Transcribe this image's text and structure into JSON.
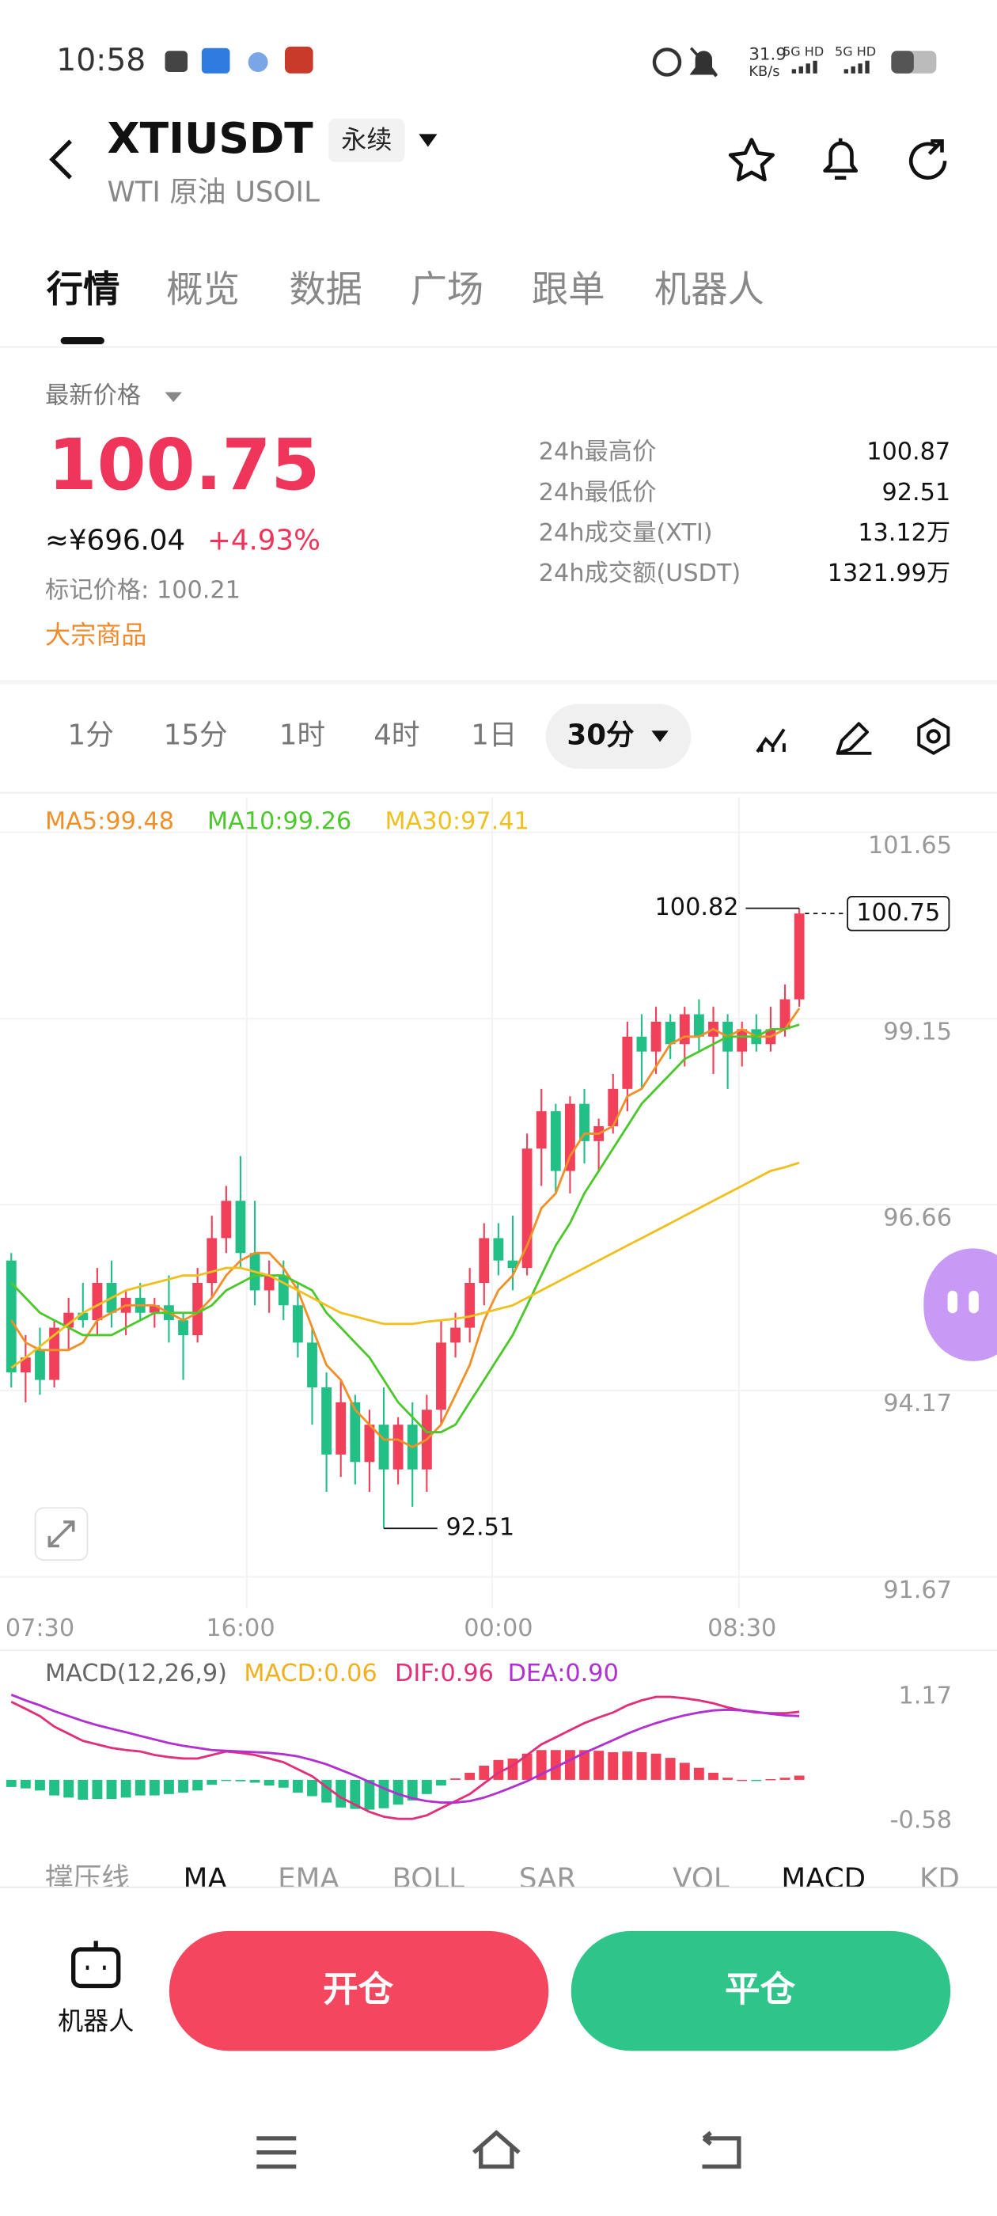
{
  "status_bar": {
    "time": "10:58",
    "net_speed": "31.9",
    "net_unit": "KB/s",
    "sim1": "5G HD",
    "sim2": "5G HD"
  },
  "header": {
    "symbol": "XTIUSDT",
    "contract": "永续",
    "subtitle": "WTI 原油 USOIL"
  },
  "tabs": [
    "行情",
    "概览",
    "数据",
    "广场",
    "跟单",
    "机器人"
  ],
  "price": {
    "label": "最新价格",
    "last": "100.75",
    "cny": "≈¥696.04",
    "change": "+4.93%",
    "mark": "标记价格: 100.21",
    "category": "大宗商品"
  },
  "stats": [
    {
      "label": "24h最高价",
      "value": "100.87"
    },
    {
      "label": "24h最低价",
      "value": "92.51"
    },
    {
      "label": "24h成交量(XTI)",
      "value": "13.12万"
    },
    {
      "label": "24h成交额(USDT)",
      "value": "1321.99万"
    }
  ],
  "timeframes": [
    "1分",
    "15分",
    "1时",
    "4时",
    "1日"
  ],
  "active_timeframe": "30分",
  "chart_data": [
    {
      "type": "candlestick",
      "up_color": "#f0405a",
      "down_color": "#22bf86",
      "grid": true,
      "categories": [
        null,
        null,
        "07:30",
        null,
        null,
        null,
        null,
        null,
        null,
        null,
        null,
        null,
        null,
        null,
        null,
        null,
        "16:00",
        null,
        null,
        null,
        null,
        null,
        null,
        null,
        null,
        null,
        null,
        null,
        null,
        null,
        null,
        null,
        null,
        null,
        "00:00",
        null,
        null,
        null,
        null,
        null,
        null,
        null,
        null,
        null,
        null,
        null,
        null,
        null,
        null,
        null,
        null,
        "08:30",
        null,
        null,
        null,
        null
      ],
      "open": [
        96.1,
        94.6,
        94.9,
        94.5,
        95.2,
        95.4,
        95.3,
        95.8,
        95.4,
        95.6,
        95.4,
        95.5,
        95.3,
        95.1,
        95.8,
        96.4,
        96.9,
        96.2,
        95.7,
        95.9,
        95.5,
        95.0,
        94.4,
        93.5,
        94.2,
        93.4,
        93.9,
        93.3,
        93.9,
        93.3,
        94.1,
        95.0,
        95.2,
        95.8,
        96.4,
        96.1,
        96.0,
        97.6,
        98.1,
        97.3,
        98.2,
        97.7,
        97.9,
        98.4,
        99.1,
        98.9,
        99.3,
        99.0,
        99.4,
        99.1,
        99.3,
        98.9,
        99.2,
        99.0,
        99.2,
        99.6
      ],
      "high": [
        96.2,
        95.1,
        95.2,
        95.3,
        95.6,
        95.8,
        96.0,
        96.1,
        95.7,
        95.8,
        95.6,
        95.9,
        95.4,
        96.0,
        96.7,
        97.1,
        97.5,
        96.9,
        96.1,
        96.1,
        95.8,
        95.2,
        94.6,
        94.5,
        94.3,
        94.1,
        94.4,
        94.0,
        94.2,
        94.3,
        95.3,
        95.4,
        96.0,
        96.6,
        96.6,
        96.7,
        97.8,
        98.4,
        98.2,
        98.3,
        98.4,
        98.0,
        98.6,
        99.3,
        99.4,
        99.5,
        99.4,
        99.5,
        99.6,
        99.5,
        99.4,
        99.3,
        99.4,
        99.5,
        99.8,
        100.82
      ],
      "low": [
        94.4,
        94.2,
        94.3,
        94.4,
        94.9,
        95.2,
        95.1,
        95.2,
        95.1,
        95.3,
        95.2,
        95.0,
        94.5,
        95.0,
        95.6,
        96.2,
        96.0,
        95.5,
        95.4,
        95.3,
        94.8,
        93.9,
        93.0,
        93.2,
        93.1,
        93.0,
        92.51,
        93.1,
        92.8,
        93.0,
        93.9,
        94.8,
        95.0,
        95.5,
        95.9,
        95.7,
        95.9,
        97.1,
        97.0,
        97.0,
        97.4,
        97.3,
        97.8,
        98.1,
        98.4,
        98.6,
        98.8,
        98.7,
        98.9,
        98.6,
        98.4,
        98.7,
        98.9,
        98.9,
        99.1,
        99.5
      ],
      "close": [
        94.6,
        94.8,
        94.5,
        95.2,
        95.4,
        95.3,
        95.8,
        95.4,
        95.6,
        95.4,
        95.5,
        95.3,
        95.1,
        95.8,
        96.4,
        96.9,
        96.2,
        95.7,
        95.9,
        95.5,
        95.0,
        94.4,
        93.5,
        94.2,
        93.4,
        93.9,
        93.3,
        93.9,
        93.3,
        94.1,
        95.0,
        95.2,
        95.8,
        96.4,
        96.1,
        96.0,
        97.6,
        98.1,
        97.3,
        98.2,
        97.7,
        97.9,
        98.4,
        99.1,
        98.9,
        99.3,
        99.0,
        99.4,
        99.1,
        99.3,
        98.9,
        99.2,
        99.0,
        99.2,
        99.6,
        100.75
      ],
      "series": [
        {
          "name": "MA5:99.48",
          "color": "#f0902a",
          "values": [
            95.3,
            95.0,
            94.9,
            94.9,
            94.9,
            95.0,
            95.3,
            95.4,
            95.5,
            95.5,
            95.5,
            95.4,
            95.3,
            95.4,
            95.6,
            95.9,
            96.1,
            96.2,
            96.2,
            96.0,
            95.7,
            95.2,
            94.7,
            94.5,
            94.1,
            93.9,
            93.7,
            93.7,
            93.6,
            93.7,
            93.9,
            94.3,
            94.7,
            95.3,
            95.7,
            95.9,
            96.3,
            96.8,
            97.0,
            97.5,
            97.8,
            97.8,
            97.9,
            98.3,
            98.4,
            98.7,
            99.0,
            99.1,
            99.1,
            99.2,
            99.1,
            99.2,
            99.1,
            99.1,
            99.2,
            99.48
          ]
        },
        {
          "name": "MA10:99.26",
          "color": "#4cc82c",
          "values": [
            95.8,
            95.6,
            95.4,
            95.3,
            95.2,
            95.1,
            95.1,
            95.1,
            95.2,
            95.3,
            95.4,
            95.4,
            95.4,
            95.4,
            95.5,
            95.7,
            95.8,
            95.9,
            95.9,
            95.9,
            95.8,
            95.7,
            95.4,
            95.2,
            95.0,
            94.8,
            94.5,
            94.2,
            94.0,
            93.8,
            93.8,
            93.9,
            94.2,
            94.5,
            94.8,
            95.1,
            95.5,
            95.9,
            96.3,
            96.6,
            97.0,
            97.3,
            97.6,
            97.9,
            98.2,
            98.4,
            98.6,
            98.8,
            98.9,
            99.0,
            99.1,
            99.1,
            99.1,
            99.2,
            99.2,
            99.26
          ]
        },
        {
          "name": "MA30:97.41",
          "color": "#f0c020",
          "values": [
            94.66,
            94.8,
            94.95,
            95.1,
            95.25,
            95.4,
            95.5,
            95.6,
            95.7,
            95.75,
            95.8,
            95.85,
            95.9,
            95.9,
            95.95,
            96.0,
            96.0,
            95.95,
            95.9,
            95.8,
            95.7,
            95.6,
            95.5,
            95.4,
            95.35,
            95.3,
            95.25,
            95.25,
            95.25,
            95.28,
            95.3,
            95.32,
            95.35,
            95.4,
            95.45,
            95.5,
            95.6,
            95.7,
            95.8,
            95.9,
            96.0,
            96.1,
            96.2,
            96.3,
            96.4,
            96.5,
            96.6,
            96.7,
            96.8,
            96.9,
            97.0,
            97.1,
            97.2,
            97.3,
            97.35,
            97.41
          ]
        }
      ],
      "ylim": [
        91.67,
        101.65
      ],
      "yticks": [
        91.67,
        94.17,
        96.66,
        99.15,
        101.65
      ]
    },
    {
      "type": "macd",
      "title": "MACD(12,26,9)",
      "up_color": "#f0405a",
      "down_color": "#22bf86",
      "series": [
        {
          "name": "MACD:0.06",
          "color": "#f0b020",
          "values": [
            -0.1,
            -0.12,
            -0.15,
            -0.22,
            -0.25,
            -0.28,
            -0.27,
            -0.27,
            -0.25,
            -0.22,
            -0.22,
            -0.2,
            -0.18,
            -0.15,
            -0.07,
            -0.01,
            -0.02,
            -0.04,
            -0.08,
            -0.11,
            -0.18,
            -0.23,
            -0.32,
            -0.39,
            -0.41,
            -0.42,
            -0.4,
            -0.35,
            -0.29,
            -0.2,
            -0.08,
            0.02,
            0.1,
            0.2,
            0.28,
            0.3,
            0.37,
            0.42,
            0.42,
            0.42,
            0.42,
            0.41,
            0.39,
            0.4,
            0.39,
            0.37,
            0.31,
            0.24,
            0.17,
            0.1,
            0.03,
            0,
            -0.01,
            0.01,
            0.03,
            0.06
          ]
        },
        {
          "name": "DIF:0.96",
          "color": "#e0307a",
          "values": [
            1.1,
            1.0,
            0.9,
            0.75,
            0.65,
            0.55,
            0.5,
            0.45,
            0.42,
            0.4,
            0.35,
            0.32,
            0.3,
            0.3,
            0.35,
            0.4,
            0.38,
            0.35,
            0.3,
            0.25,
            0.15,
            0.05,
            -0.1,
            -0.25,
            -0.35,
            -0.45,
            -0.52,
            -0.55,
            -0.55,
            -0.5,
            -0.4,
            -0.3,
            -0.2,
            -0.05,
            0.1,
            0.2,
            0.35,
            0.5,
            0.6,
            0.7,
            0.8,
            0.88,
            0.95,
            1.05,
            1.12,
            1.17,
            1.17,
            1.15,
            1.12,
            1.08,
            1.02,
            0.98,
            0.95,
            0.94,
            0.94,
            0.96
          ]
        },
        {
          "name": "DEA:0.90",
          "color": "#b030d0",
          "values": [
            1.2,
            1.12,
            1.05,
            0.97,
            0.9,
            0.83,
            0.77,
            0.72,
            0.67,
            0.62,
            0.57,
            0.52,
            0.48,
            0.45,
            0.42,
            0.41,
            0.4,
            0.39,
            0.38,
            0.36,
            0.33,
            0.28,
            0.22,
            0.14,
            0.06,
            -0.03,
            -0.12,
            -0.2,
            -0.26,
            -0.3,
            -0.32,
            -0.32,
            -0.3,
            -0.25,
            -0.18,
            -0.1,
            -0.02,
            0.08,
            0.18,
            0.28,
            0.38,
            0.47,
            0.56,
            0.65,
            0.73,
            0.8,
            0.86,
            0.91,
            0.95,
            0.98,
            0.99,
            0.98,
            0.96,
            0.93,
            0.91,
            0.9
          ]
        }
      ],
      "ylim": [
        -0.58,
        1.17
      ],
      "yticks": [
        -0.58,
        1.17
      ]
    }
  ],
  "indicators": [
    "撑压线",
    "MA",
    "EMA",
    "BOLL",
    "SAR",
    "VOL",
    "MACD",
    "KD"
  ],
  "actions": {
    "robot": "机器人",
    "open": "开仓",
    "close": "平仓"
  }
}
